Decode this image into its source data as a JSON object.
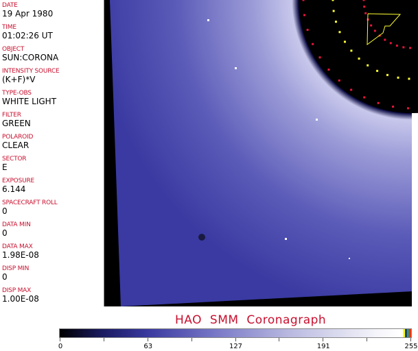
{
  "fields": [
    {
      "label": "DATE",
      "value": "19 Apr 1980"
    },
    {
      "label": "TIME",
      "value": "01:02:26 UT"
    },
    {
      "label": "OBJECT",
      "value": "SUN:CORONA"
    },
    {
      "label": "INTENSITY SOURCE",
      "value": "(K+F)*V"
    },
    {
      "label": "TYPE-OBS",
      "value": "WHITE LIGHT"
    },
    {
      "label": "FILTER",
      "value": "GREEN"
    },
    {
      "label": "POLAROID",
      "value": "CLEAR"
    },
    {
      "label": "SECTOR",
      "value": "E"
    },
    {
      "label": "EXPOSURE",
      "value": "6.144"
    },
    {
      "label": "SPACECRAFT ROLL",
      "value": "0"
    },
    {
      "label": "DATA MIN",
      "value": "0"
    },
    {
      "label": "DATA MAX",
      "value": "1.98E-08"
    },
    {
      "label": "DISP MIN",
      "value": "0"
    },
    {
      "label": "DISP MAX",
      "value": "1.00E-08"
    }
  ],
  "caption": "HAO  SMM Coronagraph",
  "colorbar": {
    "tick_labels": [
      "0",
      "63",
      "127",
      "191",
      "255"
    ],
    "colormap": [
      "#000000",
      "#3a3aa0",
      "#7a7ac8",
      "#b8b8e0",
      "#ffffff"
    ]
  },
  "colors": {
    "label": "#c8102e",
    "overlay_yellow": "#ffff33",
    "overlay_red": "#e8143c"
  }
}
